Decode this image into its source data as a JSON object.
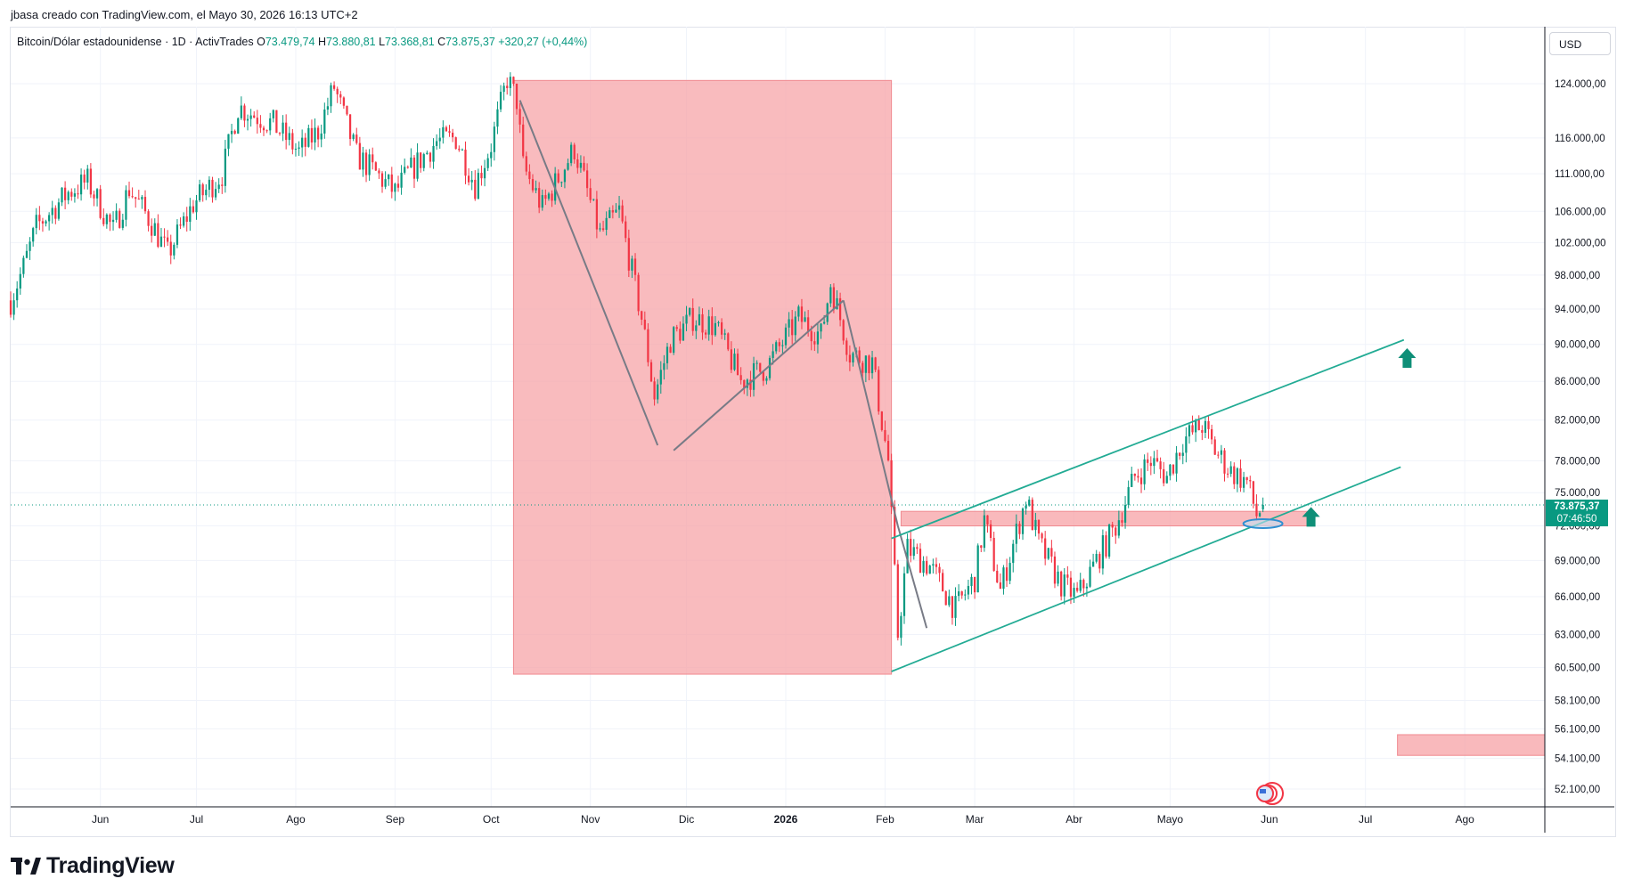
{
  "header": {
    "title": "jbasa creado con TradingView.com, el Mayo 30, 2026 16:13 UTC+2"
  },
  "legend": {
    "symbol": "Bitcoin/Dólar estadounidense · 1D · ActivTrades",
    "o_label": "O",
    "o": "73.479,74",
    "h_label": "H",
    "h": "73.880,81",
    "l_label": "L",
    "l": "73.368,81",
    "c_label": "C",
    "c": "73.875,37",
    "change": "+320,27 (+0,44%)"
  },
  "currency_button": "USD",
  "price_tag": {
    "price": "73.875,37",
    "countdown": "07:46:50"
  },
  "footer": {
    "brand": "TradingView"
  },
  "colors": {
    "up": "#089981",
    "down": "#f23645",
    "zone": "#f7a1a5",
    "channel": "#22ab94",
    "trend": "#787b86"
  },
  "chart_data": {
    "type": "candlestick",
    "symbol": "BTCUSD",
    "interval": "1D",
    "y_axis": {
      "scale": "log",
      "ticks": [
        124000,
        116000,
        111000,
        106000,
        102000,
        98000,
        94000,
        90000,
        86000,
        82000,
        78000,
        75000,
        72000,
        69000,
        66000,
        63000,
        60500,
        58100,
        56100,
        54100,
        52100
      ],
      "tick_labels": [
        "124.000,00",
        "116.000,00",
        "111.000,00",
        "106.000,00",
        "102.000,00",
        "98.000,00",
        "94.000,00",
        "90.000,00",
        "86.000,00",
        "82.000,00",
        "78.000,00",
        "75.000,00",
        "72.000,00",
        "69.000,00",
        "66.000,00",
        "63.000,00",
        "60.500,00",
        "58.100,00",
        "56.100,00",
        "54.100,00",
        "52.100,00"
      ]
    },
    "x_axis": {
      "tick_labels": [
        "Jun",
        "Jul",
        "Ago",
        "Sep",
        "Oct",
        "Nov",
        "Dic",
        "2026",
        "Feb",
        "Mar",
        "Abr",
        "Mayo",
        "Jun",
        "Jul",
        "Ago"
      ],
      "tick_dates": [
        "2025-06-01",
        "2025-07-01",
        "2025-08-01",
        "2025-09-01",
        "2025-10-01",
        "2025-11-01",
        "2025-12-01",
        "2026-01-01",
        "2026-02-01",
        "2026-03-01",
        "2026-04-01",
        "2026-05-01",
        "2026-06-01",
        "2026-07-01",
        "2026-08-01"
      ],
      "range": [
        "2025-05-04",
        "2026-08-26"
      ]
    },
    "last_price": 73875.37,
    "series_anchors": [
      {
        "date": "2025-05-04",
        "price": 95000
      },
      {
        "date": "2025-05-08",
        "price": 99000
      },
      {
        "date": "2025-05-12",
        "price": 104000
      },
      {
        "date": "2025-05-22",
        "price": 108500
      },
      {
        "date": "2025-05-28",
        "price": 110000
      },
      {
        "date": "2025-06-05",
        "price": 103500
      },
      {
        "date": "2025-06-10",
        "price": 109000
      },
      {
        "date": "2025-06-17",
        "price": 104500
      },
      {
        "date": "2025-06-22",
        "price": 100500
      },
      {
        "date": "2025-06-30",
        "price": 107000
      },
      {
        "date": "2025-07-09",
        "price": 111000
      },
      {
        "date": "2025-07-14",
        "price": 120500
      },
      {
        "date": "2025-07-25",
        "price": 118000
      },
      {
        "date": "2025-08-02",
        "price": 114000
      },
      {
        "date": "2025-08-08",
        "price": 117000
      },
      {
        "date": "2025-08-13",
        "price": 123500
      },
      {
        "date": "2025-08-20",
        "price": 113500
      },
      {
        "date": "2025-08-25",
        "price": 111500
      },
      {
        "date": "2025-09-01",
        "price": 108500
      },
      {
        "date": "2025-09-05",
        "price": 111000
      },
      {
        "date": "2025-09-14",
        "price": 115500
      },
      {
        "date": "2025-09-20",
        "price": 116000
      },
      {
        "date": "2025-09-26",
        "price": 109500
      },
      {
        "date": "2025-10-01",
        "price": 115000
      },
      {
        "date": "2025-10-06",
        "price": 124800
      },
      {
        "date": "2025-10-09",
        "price": 121500
      },
      {
        "date": "2025-10-11",
        "price": 112000
      },
      {
        "date": "2025-10-17",
        "price": 106500
      },
      {
        "date": "2025-10-27",
        "price": 114500
      },
      {
        "date": "2025-11-04",
        "price": 103000
      },
      {
        "date": "2025-11-10",
        "price": 106000
      },
      {
        "date": "2025-11-17",
        "price": 93000
      },
      {
        "date": "2025-11-21",
        "price": 84500
      },
      {
        "date": "2025-11-26",
        "price": 90500
      },
      {
        "date": "2025-12-03",
        "price": 93000
      },
      {
        "date": "2025-12-10",
        "price": 92000
      },
      {
        "date": "2025-12-18",
        "price": 86000
      },
      {
        "date": "2025-12-26",
        "price": 87500
      },
      {
        "date": "2026-01-05",
        "price": 93000
      },
      {
        "date": "2026-01-12",
        "price": 91000
      },
      {
        "date": "2026-01-15",
        "price": 97000
      },
      {
        "date": "2026-01-21",
        "price": 89000
      },
      {
        "date": "2026-01-28",
        "price": 88000
      },
      {
        "date": "2026-02-02",
        "price": 78000
      },
      {
        "date": "2026-02-05",
        "price": 63000
      },
      {
        "date": "2026-02-08",
        "price": 70000
      },
      {
        "date": "2026-02-15",
        "price": 68500
      },
      {
        "date": "2026-02-23",
        "price": 65000
      },
      {
        "date": "2026-03-01",
        "price": 67500
      },
      {
        "date": "2026-03-04",
        "price": 72500
      },
      {
        "date": "2026-03-09",
        "price": 66500
      },
      {
        "date": "2026-03-17",
        "price": 74500
      },
      {
        "date": "2026-03-21",
        "price": 70500
      },
      {
        "date": "2026-03-28",
        "price": 67000
      },
      {
        "date": "2026-04-02",
        "price": 66000
      },
      {
        "date": "2026-04-08",
        "price": 69000
      },
      {
        "date": "2026-04-14",
        "price": 72000
      },
      {
        "date": "2026-04-20",
        "price": 76500
      },
      {
        "date": "2026-04-25",
        "price": 78000
      },
      {
        "date": "2026-04-30",
        "price": 76500
      },
      {
        "date": "2026-05-05",
        "price": 80000
      },
      {
        "date": "2026-05-11",
        "price": 81500
      },
      {
        "date": "2026-05-15",
        "price": 79000
      },
      {
        "date": "2026-05-20",
        "price": 77000
      },
      {
        "date": "2026-05-25",
        "price": 76000
      },
      {
        "date": "2026-05-28",
        "price": 73000
      },
      {
        "date": "2026-05-30",
        "price": 73875.37
      }
    ],
    "annotations": {
      "range_zone": {
        "from": "2025-10-08",
        "to": "2026-02-03",
        "top": 124500,
        "bottom": 60000
      },
      "support_zone": {
        "from": "2026-02-06",
        "to": "2026-06-15",
        "top": 73300,
        "bottom": 72000
      },
      "target_zone": {
        "from": "2026-07-11",
        "to": "2026-08-26",
        "top": 55700,
        "bottom": 54300
      },
      "channel_upper": {
        "from": [
          "2026-02-03",
          70900
        ],
        "to": [
          "2026-07-13",
          90500
        ]
      },
      "channel_lower": {
        "from": [
          "2026-02-03",
          60200
        ],
        "to": [
          "2026-07-12",
          77400
        ]
      },
      "trend_lines": [
        {
          "from": [
            "2025-10-10",
            121500
          ],
          "to": [
            "2025-11-22",
            79500
          ]
        },
        {
          "from": [
            "2025-11-27",
            79000
          ],
          "to": [
            "2026-01-19",
            95000
          ]
        },
        {
          "from": [
            "2026-01-19",
            95000
          ],
          "to": [
            "2026-02-05",
            72000
          ]
        },
        {
          "from": [
            "2026-02-05",
            72000
          ],
          "to": [
            "2026-02-14",
            63500
          ]
        }
      ],
      "up_arrows": [
        {
          "date": "2026-07-14",
          "price": 88500
        },
        {
          "date": "2026-06-14",
          "price": 72800
        }
      ],
      "ellipse": {
        "date": "2026-05-30",
        "price": 72200
      }
    }
  }
}
